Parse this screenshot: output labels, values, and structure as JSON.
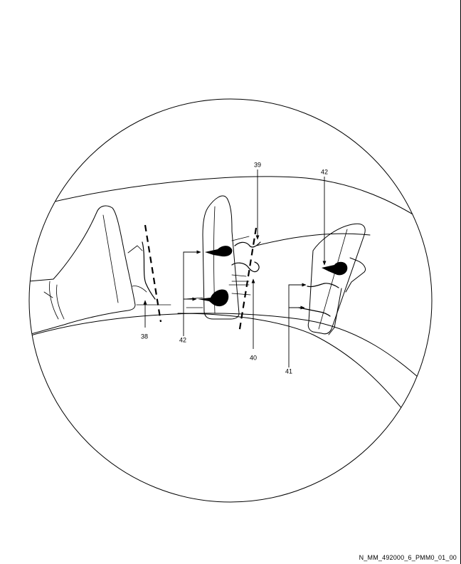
{
  "callouts": {
    "c38": "38",
    "c39": "39",
    "c40": "40",
    "c41": "41",
    "c42_left": "42",
    "c42_right": "42"
  },
  "figure_id": "N_MM_492000_6_PMM0_01_00"
}
